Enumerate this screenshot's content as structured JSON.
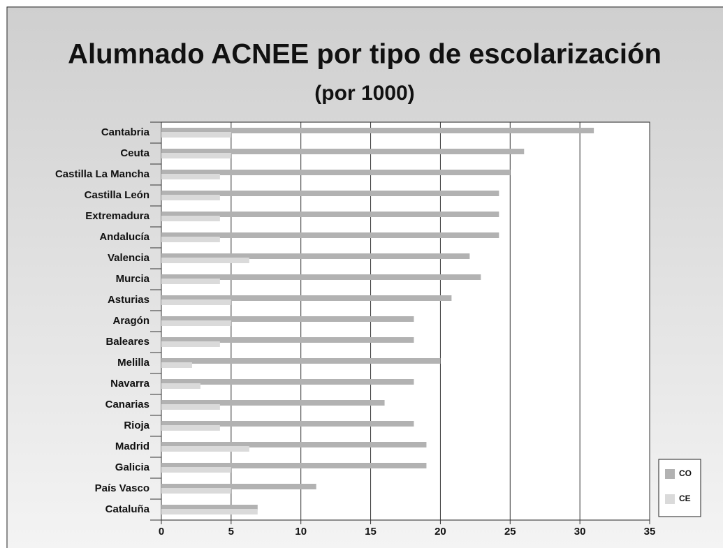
{
  "chart_data": {
    "type": "bar",
    "orientation": "horizontal",
    "title": "Alumnado ACNEE por tipo de escolarización",
    "subtitle": "(por 1000)",
    "categories": [
      "Cantabria",
      "Ceuta",
      "Castilla La Mancha",
      "Castilla León",
      "Extremadura",
      "Andalucía",
      "Valencia",
      "Murcia",
      "Asturias",
      "Aragón",
      "Baleares",
      "Melilla",
      "Navarra",
      "Canarias",
      "Rioja",
      "Madrid",
      "Galicia",
      "País Vasco",
      "Cataluña"
    ],
    "series": [
      {
        "name": "CO",
        "color": "#b2b2b2",
        "values": [
          31,
          26,
          25,
          24.2,
          24.2,
          24.2,
          22.1,
          22.9,
          20.8,
          18.1,
          18.1,
          20,
          18.1,
          16,
          18.1,
          19,
          19,
          11.1,
          6.9
        ]
      },
      {
        "name": "CE",
        "color": "#dadada",
        "values": [
          5,
          5,
          4.2,
          4.2,
          4.2,
          4.2,
          6.3,
          4.2,
          5,
          5,
          4.2,
          2.2,
          2.8,
          4.2,
          4.2,
          6.3,
          5,
          5,
          6.9
        ]
      }
    ],
    "xlim": [
      0,
      35
    ],
    "xticks": [
      0,
      5,
      10,
      15,
      20,
      25,
      30,
      35
    ],
    "grid": true,
    "legend": "lower right"
  }
}
